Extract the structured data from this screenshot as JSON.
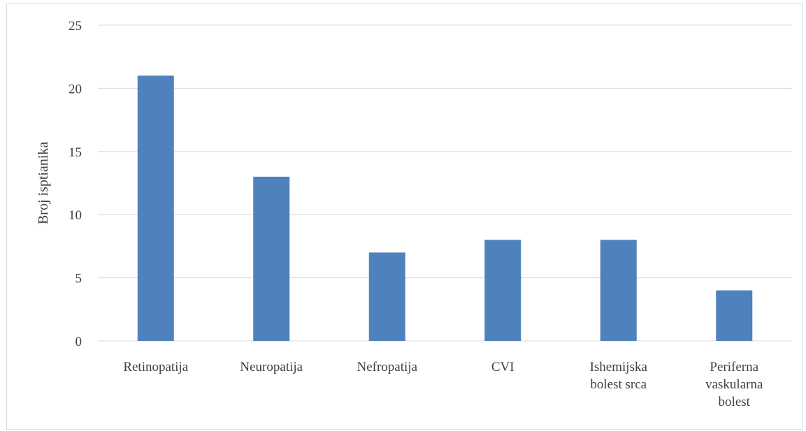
{
  "chart_data": {
    "type": "bar",
    "title": "",
    "xlabel": "",
    "ylabel": "Broj isptianika",
    "categories": [
      [
        "Retinopatija"
      ],
      [
        "Neuropatija"
      ],
      [
        "Nefropatija"
      ],
      [
        "CVI"
      ],
      [
        "Ishemijska",
        "bolest srca"
      ],
      [
        "Periferna",
        "vaskularna",
        "bolest"
      ]
    ],
    "values": [
      21,
      13,
      7,
      8,
      8,
      4
    ],
    "ylim": [
      0,
      25
    ],
    "yticks": [
      "0",
      "5",
      "10",
      "15",
      "20",
      "25"
    ],
    "grid": true,
    "legend": "none",
    "bar_color": "#4f81bd",
    "grid_color": "#d9d9d9"
  }
}
